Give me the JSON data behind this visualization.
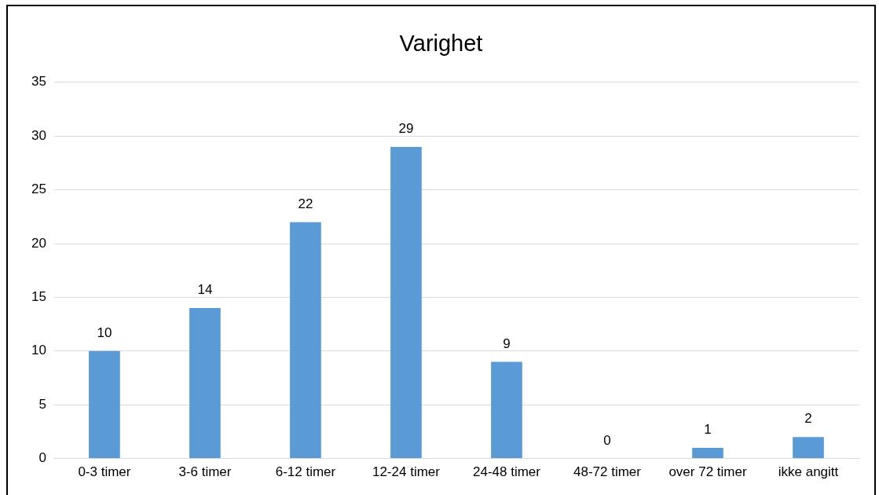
{
  "chart_data": {
    "type": "bar",
    "title": "Varighet",
    "categories": [
      "0-3 timer",
      "3-6 timer",
      "6-12 timer",
      "12-24 timer",
      "24-48 timer",
      "48-72 timer",
      "over 72 timer",
      "ikke angitt"
    ],
    "values": [
      10,
      14,
      22,
      29,
      9,
      0,
      1,
      2
    ],
    "color": "#5b9bd5",
    "ylim": [
      0,
      35
    ],
    "yticks": [
      0,
      5,
      10,
      15,
      20,
      25,
      30,
      35
    ],
    "grid": "y",
    "data_labels": true
  }
}
